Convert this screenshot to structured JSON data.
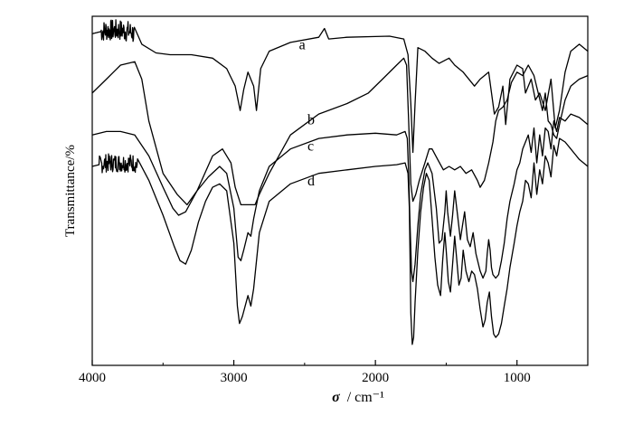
{
  "chart_data": {
    "type": "line",
    "title": "",
    "xlabel": {
      "symbol": "σ",
      "unit": "/ cm⁻¹"
    },
    "ylabel": "Transmittance/%",
    "xlim": [
      4000,
      500
    ],
    "x_reversed": true,
    "ylim": [
      0,
      100
    ],
    "y_ticks_shown": false,
    "x_ticks": [
      4000,
      3000,
      2000,
      1000
    ],
    "x_tick_labels": [
      "4000",
      "3000",
      "2000",
      "1000"
    ],
    "grid": false,
    "legend": "none",
    "series": [
      {
        "label": "a",
        "label_at": [
          2540,
          90.5
        ],
        "noise": [
          3940,
          3700,
          1.4
        ],
        "points": [
          [
            4000,
            95
          ],
          [
            3900,
            96
          ],
          [
            3800,
            96
          ],
          [
            3720,
            95.5
          ],
          [
            3650,
            92
          ],
          [
            3550,
            89.5
          ],
          [
            3450,
            89
          ],
          [
            3300,
            89
          ],
          [
            3150,
            88
          ],
          [
            3050,
            85
          ],
          [
            2990,
            80
          ],
          [
            2955,
            73
          ],
          [
            2930,
            79
          ],
          [
            2900,
            84
          ],
          [
            2860,
            80
          ],
          [
            2840,
            73
          ],
          [
            2810,
            85
          ],
          [
            2750,
            90
          ],
          [
            2600,
            92.5
          ],
          [
            2400,
            94
          ],
          [
            2360,
            96.5
          ],
          [
            2330,
            93.5
          ],
          [
            2200,
            94
          ],
          [
            2000,
            94.2
          ],
          [
            1900,
            94.3
          ],
          [
            1800,
            93.5
          ],
          [
            1770,
            89
          ],
          [
            1750,
            75
          ],
          [
            1735,
            61
          ],
          [
            1720,
            75
          ],
          [
            1700,
            91
          ],
          [
            1650,
            90
          ],
          [
            1600,
            88
          ],
          [
            1550,
            86.5
          ],
          [
            1480,
            88
          ],
          [
            1440,
            86
          ],
          [
            1380,
            84
          ],
          [
            1300,
            80
          ],
          [
            1260,
            82
          ],
          [
            1200,
            84
          ],
          [
            1160,
            72
          ],
          [
            1130,
            74
          ],
          [
            1100,
            80
          ],
          [
            1080,
            69
          ],
          [
            1050,
            82
          ],
          [
            1000,
            86
          ],
          [
            960,
            85
          ],
          [
            940,
            78
          ],
          [
            900,
            82
          ],
          [
            870,
            76
          ],
          [
            840,
            78
          ],
          [
            800,
            73
          ],
          [
            760,
            82
          ],
          [
            730,
            68
          ],
          [
            700,
            73
          ],
          [
            660,
            84
          ],
          [
            620,
            90
          ],
          [
            560,
            92
          ],
          [
            500,
            90
          ]
        ]
      },
      {
        "label": "b",
        "label_at": [
          2480,
          69
        ],
        "noise": null,
        "points": [
          [
            4000,
            78
          ],
          [
            3900,
            82
          ],
          [
            3800,
            86
          ],
          [
            3700,
            87
          ],
          [
            3650,
            82
          ],
          [
            3600,
            70
          ],
          [
            3500,
            55
          ],
          [
            3400,
            49
          ],
          [
            3330,
            46
          ],
          [
            3260,
            50
          ],
          [
            3150,
            60
          ],
          [
            3080,
            62
          ],
          [
            3020,
            58
          ],
          [
            2990,
            51
          ],
          [
            2950,
            46
          ],
          [
            2900,
            46
          ],
          [
            2870,
            46
          ],
          [
            2850,
            46
          ],
          [
            2820,
            49
          ],
          [
            2750,
            55
          ],
          [
            2600,
            66
          ],
          [
            2400,
            72
          ],
          [
            2200,
            75
          ],
          [
            2050,
            78
          ],
          [
            1950,
            82
          ],
          [
            1850,
            86
          ],
          [
            1800,
            88
          ],
          [
            1780,
            86
          ],
          [
            1765,
            70
          ],
          [
            1750,
            52
          ],
          [
            1735,
            47
          ],
          [
            1715,
            49
          ],
          [
            1690,
            53
          ],
          [
            1650,
            58
          ],
          [
            1620,
            62
          ],
          [
            1600,
            62
          ],
          [
            1560,
            59
          ],
          [
            1520,
            56
          ],
          [
            1480,
            57
          ],
          [
            1440,
            56
          ],
          [
            1400,
            57
          ],
          [
            1360,
            55
          ],
          [
            1320,
            56
          ],
          [
            1280,
            53
          ],
          [
            1260,
            51
          ],
          [
            1230,
            53
          ],
          [
            1200,
            58
          ],
          [
            1170,
            64
          ],
          [
            1150,
            70
          ],
          [
            1130,
            73
          ],
          [
            1100,
            74
          ],
          [
            1070,
            76
          ],
          [
            1040,
            81
          ],
          [
            1000,
            84
          ],
          [
            960,
            83
          ],
          [
            920,
            86
          ],
          [
            880,
            83
          ],
          [
            850,
            78
          ],
          [
            820,
            73
          ],
          [
            800,
            78
          ],
          [
            780,
            70
          ],
          [
            760,
            69
          ],
          [
            740,
            66
          ],
          [
            720,
            65
          ],
          [
            700,
            69
          ],
          [
            660,
            76
          ],
          [
            620,
            80
          ],
          [
            560,
            82
          ],
          [
            500,
            83
          ]
        ]
      },
      {
        "label": "c",
        "label_at": [
          2480,
          61.5
        ],
        "noise": null,
        "points": [
          [
            4000,
            66
          ],
          [
            3900,
            67
          ],
          [
            3800,
            67
          ],
          [
            3700,
            66
          ],
          [
            3600,
            60
          ],
          [
            3500,
            51
          ],
          [
            3430,
            45
          ],
          [
            3390,
            43
          ],
          [
            3340,
            44
          ],
          [
            3260,
            50
          ],
          [
            3180,
            54
          ],
          [
            3100,
            57
          ],
          [
            3050,
            55
          ],
          [
            3000,
            45
          ],
          [
            2970,
            31
          ],
          [
            2950,
            30
          ],
          [
            2930,
            33
          ],
          [
            2900,
            38
          ],
          [
            2880,
            37
          ],
          [
            2860,
            42
          ],
          [
            2820,
            50
          ],
          [
            2750,
            57
          ],
          [
            2600,
            62
          ],
          [
            2400,
            65
          ],
          [
            2200,
            66
          ],
          [
            2000,
            66.5
          ],
          [
            1850,
            66
          ],
          [
            1790,
            67
          ],
          [
            1775,
            65
          ],
          [
            1765,
            55
          ],
          [
            1755,
            40
          ],
          [
            1745,
            27
          ],
          [
            1735,
            24
          ],
          [
            1720,
            29
          ],
          [
            1700,
            40
          ],
          [
            1680,
            49
          ],
          [
            1650,
            56
          ],
          [
            1630,
            58
          ],
          [
            1600,
            55
          ],
          [
            1570,
            45
          ],
          [
            1550,
            35
          ],
          [
            1530,
            36
          ],
          [
            1510,
            44
          ],
          [
            1500,
            50
          ],
          [
            1490,
            44
          ],
          [
            1470,
            37
          ],
          [
            1455,
            43
          ],
          [
            1440,
            50
          ],
          [
            1420,
            43
          ],
          [
            1400,
            36
          ],
          [
            1385,
            40
          ],
          [
            1370,
            44
          ],
          [
            1350,
            36
          ],
          [
            1330,
            34
          ],
          [
            1310,
            38
          ],
          [
            1290,
            32
          ],
          [
            1260,
            27
          ],
          [
            1240,
            25
          ],
          [
            1220,
            27
          ],
          [
            1210,
            32
          ],
          [
            1200,
            36
          ],
          [
            1190,
            33
          ],
          [
            1180,
            28
          ],
          [
            1170,
            26
          ],
          [
            1150,
            25
          ],
          [
            1130,
            26
          ],
          [
            1110,
            30
          ],
          [
            1090,
            35
          ],
          [
            1070,
            42
          ],
          [
            1050,
            47
          ],
          [
            1020,
            52
          ],
          [
            1000,
            56
          ],
          [
            980,
            58
          ],
          [
            960,
            62
          ],
          [
            940,
            64
          ],
          [
            920,
            66
          ],
          [
            900,
            61
          ],
          [
            880,
            68
          ],
          [
            860,
            58
          ],
          [
            840,
            66
          ],
          [
            820,
            60
          ],
          [
            800,
            68
          ],
          [
            780,
            67
          ],
          [
            760,
            62
          ],
          [
            740,
            70
          ],
          [
            720,
            67
          ],
          [
            700,
            71
          ],
          [
            660,
            70
          ],
          [
            620,
            72
          ],
          [
            560,
            71
          ],
          [
            500,
            69
          ]
        ]
      },
      {
        "label": "d",
        "label_at": [
          2480,
          51.5
        ],
        "noise": [
          3950,
          3680,
          1.2
        ],
        "points": [
          [
            4000,
            57
          ],
          [
            3900,
            58
          ],
          [
            3800,
            58
          ],
          [
            3700,
            58
          ],
          [
            3600,
            53
          ],
          [
            3500,
            43
          ],
          [
            3420,
            34
          ],
          [
            3380,
            30
          ],
          [
            3340,
            29
          ],
          [
            3300,
            33
          ],
          [
            3250,
            41
          ],
          [
            3200,
            47
          ],
          [
            3150,
            51
          ],
          [
            3100,
            52
          ],
          [
            3050,
            50
          ],
          [
            3000,
            35
          ],
          [
            2975,
            17
          ],
          [
            2960,
            12
          ],
          [
            2940,
            14
          ],
          [
            2920,
            17
          ],
          [
            2900,
            20
          ],
          [
            2880,
            17
          ],
          [
            2860,
            22
          ],
          [
            2820,
            38
          ],
          [
            2750,
            47
          ],
          [
            2600,
            52
          ],
          [
            2400,
            55
          ],
          [
            2200,
            56
          ],
          [
            2000,
            57
          ],
          [
            1850,
            57.5
          ],
          [
            1790,
            58
          ],
          [
            1770,
            55
          ],
          [
            1760,
            45
          ],
          [
            1750,
            15
          ],
          [
            1740,
            6
          ],
          [
            1730,
            8
          ],
          [
            1720,
            18
          ],
          [
            1700,
            33
          ],
          [
            1680,
            44
          ],
          [
            1660,
            51
          ],
          [
            1640,
            55
          ],
          [
            1620,
            53
          ],
          [
            1600,
            42
          ],
          [
            1580,
            31
          ],
          [
            1560,
            23
          ],
          [
            1540,
            20
          ],
          [
            1525,
            30
          ],
          [
            1510,
            38
          ],
          [
            1500,
            33
          ],
          [
            1485,
            24
          ],
          [
            1470,
            21
          ],
          [
            1455,
            29
          ],
          [
            1440,
            37
          ],
          [
            1425,
            30
          ],
          [
            1410,
            23
          ],
          [
            1395,
            25
          ],
          [
            1380,
            33
          ],
          [
            1360,
            27
          ],
          [
            1340,
            24
          ],
          [
            1320,
            27
          ],
          [
            1300,
            26
          ],
          [
            1280,
            22
          ],
          [
            1260,
            16
          ],
          [
            1240,
            11
          ],
          [
            1225,
            13
          ],
          [
            1210,
            18
          ],
          [
            1195,
            21
          ],
          [
            1180,
            14
          ],
          [
            1165,
            9
          ],
          [
            1150,
            8
          ],
          [
            1130,
            9
          ],
          [
            1110,
            12
          ],
          [
            1090,
            17
          ],
          [
            1070,
            22
          ],
          [
            1050,
            28
          ],
          [
            1020,
            35
          ],
          [
            1000,
            40
          ],
          [
            980,
            44
          ],
          [
            960,
            47
          ],
          [
            940,
            53
          ],
          [
            920,
            52
          ],
          [
            900,
            48
          ],
          [
            880,
            58
          ],
          [
            860,
            49
          ],
          [
            840,
            56
          ],
          [
            820,
            52
          ],
          [
            800,
            60
          ],
          [
            780,
            58
          ],
          [
            760,
            54
          ],
          [
            740,
            63
          ],
          [
            720,
            60
          ],
          [
            700,
            65
          ],
          [
            660,
            64
          ],
          [
            620,
            62
          ],
          [
            560,
            59
          ],
          [
            500,
            57
          ]
        ]
      }
    ]
  }
}
